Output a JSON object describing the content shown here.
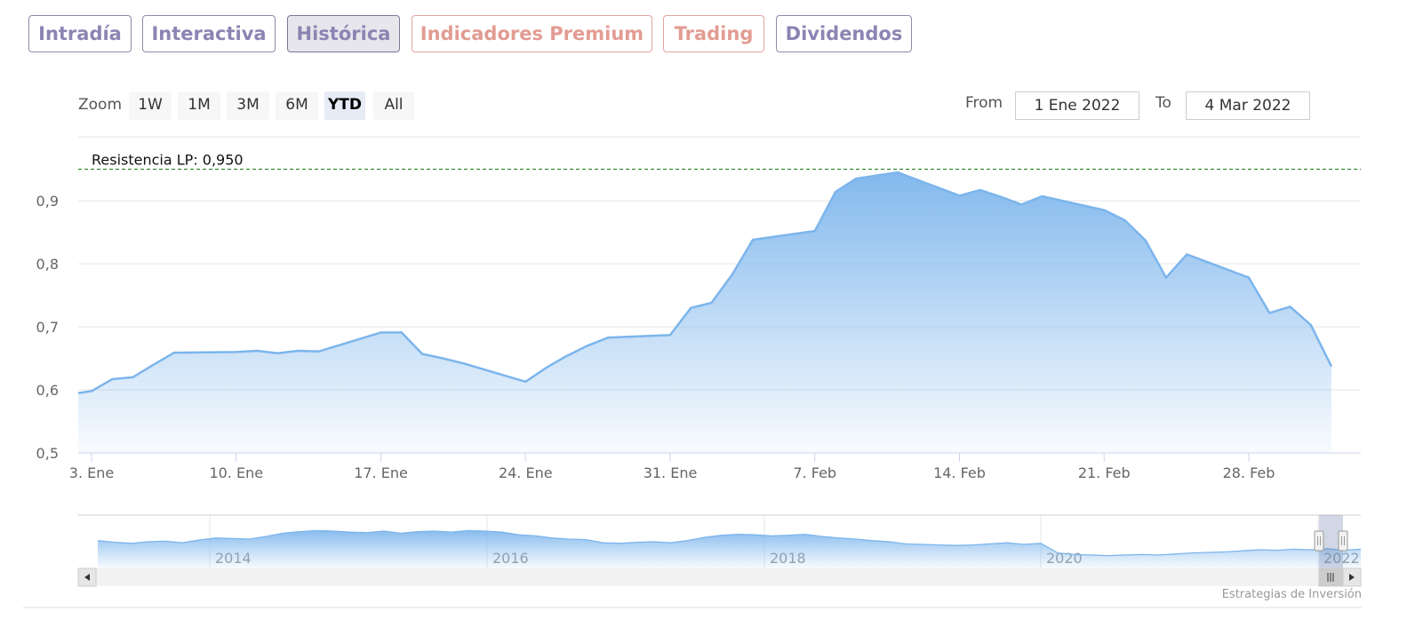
{
  "tabs": [
    {
      "label": "Intradía",
      "state": "normal"
    },
    {
      "label": "Interactiva",
      "state": "normal"
    },
    {
      "label": "Histórica",
      "state": "active"
    },
    {
      "label": "Indicadores Premium",
      "state": "warm"
    },
    {
      "label": "Trading",
      "state": "warm"
    },
    {
      "label": "Dividendos",
      "state": "normal"
    }
  ],
  "range_selector": {
    "zoom_label": "Zoom",
    "buttons": [
      "1W",
      "1M",
      "3M",
      "6M",
      "YTD",
      "All"
    ],
    "selected": "YTD",
    "from_label": "From",
    "from_value": "1 Ene 2022",
    "to_label": "To",
    "to_value": "4 Mar 2022"
  },
  "credit": "Estrategias de Inversión",
  "colors": {
    "line": "#7cb5ec",
    "area_top": "#7cb5ec",
    "resistance": "#1a7a1a",
    "tab_text": "#8d84b3",
    "tab_text_warm": "#e29c92"
  },
  "chart_data": {
    "type": "area",
    "title": "",
    "xlabel": "",
    "ylabel": "",
    "x_start": "2022-01-03",
    "x": [
      "2022-01-03",
      "2022-01-04",
      "2022-01-05",
      "2022-01-06",
      "2022-01-07",
      "2022-01-10",
      "2022-01-11",
      "2022-01-12",
      "2022-01-13",
      "2022-01-14",
      "2022-01-17",
      "2022-01-18",
      "2022-01-19",
      "2022-01-20",
      "2022-01-21",
      "2022-01-24",
      "2022-01-25",
      "2022-01-26",
      "2022-01-27",
      "2022-01-28",
      "2022-01-31",
      "2022-02-01",
      "2022-02-02",
      "2022-02-03",
      "2022-02-04",
      "2022-02-07",
      "2022-02-08",
      "2022-02-09",
      "2022-02-10",
      "2022-02-11",
      "2022-02-14",
      "2022-02-15",
      "2022-02-16",
      "2022-02-17",
      "2022-02-18",
      "2022-02-21",
      "2022-02-22",
      "2022-02-23",
      "2022-02-24",
      "2022-02-25",
      "2022-02-28",
      "2022-03-01",
      "2022-03-02",
      "2022-03-03",
      "2022-03-04"
    ],
    "series": [
      {
        "name": "",
        "values": [
          0.598,
          0.617,
          0.62,
          0.64,
          0.659,
          0.66,
          0.662,
          0.658,
          0.662,
          0.661,
          0.691,
          0.691,
          0.657,
          0.65,
          0.642,
          0.613,
          0.635,
          0.654,
          0.67,
          0.683,
          0.687,
          0.73,
          0.738,
          0.783,
          0.838,
          0.852,
          0.914,
          0.935,
          0.94,
          0.945,
          0.908,
          0.917,
          0.906,
          0.894,
          0.907,
          0.885,
          0.869,
          0.837,
          0.778,
          0.815,
          0.778,
          0.722,
          0.732,
          0.703,
          0.637
        ],
        "first_value": 0.595
      }
    ],
    "ylim": [
      0.5,
      0.97
    ],
    "y_ticks": [
      "0,5",
      "0,6",
      "0,7",
      "0,8",
      "0,9"
    ],
    "x_ticks": [
      "3. Ene",
      "10. Ene",
      "17. Ene",
      "24. Ene",
      "31. Ene",
      "7. Feb",
      "14. Feb",
      "21. Feb",
      "28. Feb"
    ],
    "grid": true,
    "legend": "none",
    "plot_lines": [
      {
        "label": "Resistencia LP: 0,950",
        "value": 0.95
      }
    ],
    "navigator": {
      "x_ticks": [
        "2014",
        "2016",
        "2018",
        "2020",
        "2022"
      ],
      "values": [
        0.52,
        0.49,
        0.47,
        0.5,
        0.51,
        0.48,
        0.53,
        0.57,
        0.56,
        0.55,
        0.6,
        0.66,
        0.69,
        0.71,
        0.7,
        0.68,
        0.67,
        0.7,
        0.66,
        0.69,
        0.7,
        0.68,
        0.71,
        0.7,
        0.68,
        0.63,
        0.61,
        0.57,
        0.55,
        0.54,
        0.48,
        0.47,
        0.49,
        0.5,
        0.48,
        0.52,
        0.58,
        0.62,
        0.64,
        0.63,
        0.61,
        0.62,
        0.64,
        0.6,
        0.57,
        0.55,
        0.52,
        0.5,
        0.46,
        0.45,
        0.44,
        0.43,
        0.44,
        0.46,
        0.48,
        0.45,
        0.47,
        0.29,
        0.26,
        0.25,
        0.24,
        0.25,
        0.26,
        0.25,
        0.27,
        0.29,
        0.3,
        0.31,
        0.33,
        0.35,
        0.34,
        0.36,
        0.35,
        0.37,
        0.34,
        0.36
      ]
    }
  }
}
